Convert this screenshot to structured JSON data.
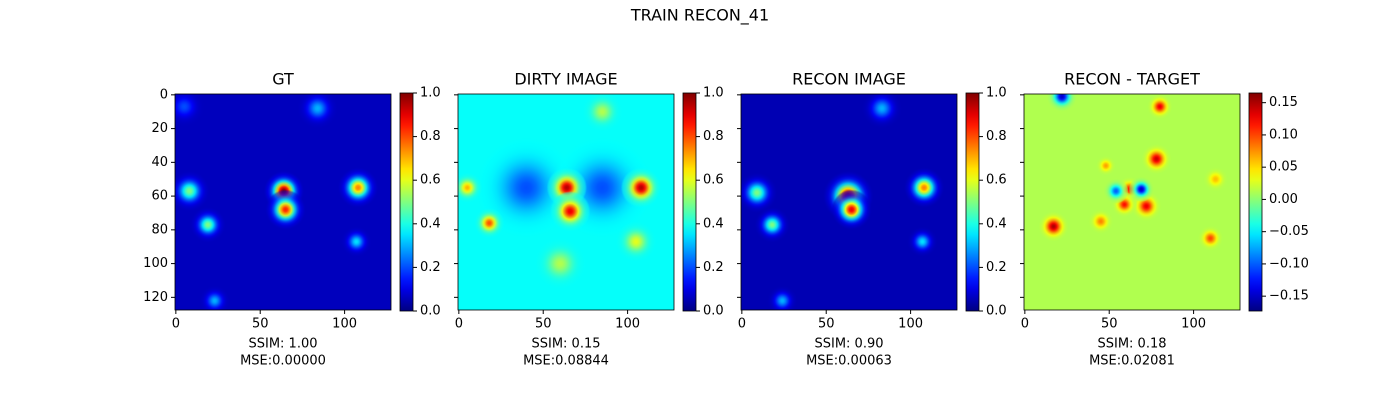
{
  "title": "TRAIN RECON_41",
  "chart_data": [
    {
      "type": "heatmap",
      "title": "GT",
      "xlabel": [
        "SSIM: 1.00",
        "MSE:0.00000"
      ],
      "colormap": "jet",
      "xlim": [
        -0.5,
        127.5
      ],
      "ylim": [
        127.5,
        -0.5
      ],
      "xticks": [
        0,
        50,
        100
      ],
      "yticks": [
        0,
        20,
        40,
        60,
        80,
        100,
        120
      ],
      "ytick_labels": true,
      "clim": [
        0,
        1
      ],
      "cticks": [
        {
          "value": 0,
          "label": "0.0"
        },
        {
          "value": 0.2,
          "label": "0.2"
        },
        {
          "value": 0.4,
          "label": "0.4"
        },
        {
          "value": 0.6,
          "label": "0.6"
        },
        {
          "value": 0.8,
          "label": "0.8"
        },
        {
          "value": 1,
          "label": "1.0"
        }
      ],
      "background": 0.06,
      "peaks": [
        {
          "x": 64,
          "y": 57,
          "value": 1.0,
          "sigma": 4
        },
        {
          "x": 65,
          "y": 68,
          "value": 0.85,
          "sigma": 4
        },
        {
          "x": 108,
          "y": 55,
          "value": 0.75,
          "sigma": 4
        },
        {
          "x": 8,
          "y": 57,
          "value": 0.5,
          "sigma": 4
        },
        {
          "x": 19,
          "y": 77,
          "value": 0.5,
          "sigma": 3.5
        },
        {
          "x": 84,
          "y": 8,
          "value": 0.3,
          "sigma": 4
        },
        {
          "x": 107,
          "y": 87,
          "value": 0.35,
          "sigma": 3
        },
        {
          "x": 23,
          "y": 122,
          "value": 0.3,
          "sigma": 3
        },
        {
          "x": 5,
          "y": 7,
          "value": 0.2,
          "sigma": 4
        }
      ]
    },
    {
      "type": "heatmap",
      "title": "DIRTY IMAGE",
      "xlabel": [
        "SSIM: 0.15",
        "MSE:0.08844"
      ],
      "colormap": "jet",
      "xlim": [
        -0.5,
        127.5
      ],
      "ylim": [
        127.5,
        -0.5
      ],
      "xticks": [
        0,
        50,
        100
      ],
      "yticks": [
        0,
        20,
        40,
        60,
        80,
        100,
        120
      ],
      "ytick_labels": false,
      "clim": [
        0,
        1
      ],
      "cticks": [
        {
          "value": 0,
          "label": "0.0"
        },
        {
          "value": 0.2,
          "label": "0.2"
        },
        {
          "value": 0.4,
          "label": "0.4"
        },
        {
          "value": 0.6,
          "label": "0.6"
        },
        {
          "value": 0.8,
          "label": "0.8"
        },
        {
          "value": 1,
          "label": "1.0"
        }
      ],
      "background": 0.38,
      "peaks": [
        {
          "x": 40,
          "y": 55,
          "value": 0.2,
          "sigma": 10
        },
        {
          "x": 85,
          "y": 55,
          "value": 0.2,
          "sigma": 10
        },
        {
          "x": 64,
          "y": 55,
          "value": 0.95,
          "sigma": 4
        },
        {
          "x": 66,
          "y": 69,
          "value": 0.9,
          "sigma": 4
        },
        {
          "x": 108,
          "y": 55,
          "value": 0.95,
          "sigma": 4
        },
        {
          "x": 18,
          "y": 76,
          "value": 0.8,
          "sigma": 3
        },
        {
          "x": 5,
          "y": 55,
          "value": 0.7,
          "sigma": 3
        },
        {
          "x": 105,
          "y": 87,
          "value": 0.6,
          "sigma": 4
        },
        {
          "x": 85,
          "y": 10,
          "value": 0.55,
          "sigma": 4
        },
        {
          "x": 60,
          "y": 100,
          "value": 0.55,
          "sigma": 5
        }
      ]
    },
    {
      "type": "heatmap",
      "title": "RECON IMAGE",
      "xlabel": [
        "SSIM: 0.90",
        "MSE:0.00063"
      ],
      "colormap": "jet",
      "xlim": [
        -0.5,
        127.5
      ],
      "ylim": [
        127.5,
        -0.5
      ],
      "xticks": [
        0,
        50,
        100
      ],
      "yticks": [
        0,
        20,
        40,
        60,
        80,
        100,
        120
      ],
      "ytick_labels": false,
      "clim": [
        0,
        1
      ],
      "cticks": [
        {
          "value": 0,
          "label": "0.0"
        },
        {
          "value": 0.2,
          "label": "0.2"
        },
        {
          "value": 0.4,
          "label": "0.4"
        },
        {
          "value": 0.6,
          "label": "0.6"
        },
        {
          "value": 0.8,
          "label": "0.8"
        },
        {
          "value": 1,
          "label": "1.0"
        }
      ],
      "background": 0.05,
      "peaks": [
        {
          "x": 63,
          "y": 60,
          "value": 0.95,
          "sigma": 5
        },
        {
          "x": 65,
          "y": 68,
          "value": 0.9,
          "sigma": 4
        },
        {
          "x": 108,
          "y": 55,
          "value": 0.75,
          "sigma": 4
        },
        {
          "x": 9,
          "y": 58,
          "value": 0.5,
          "sigma": 4
        },
        {
          "x": 18,
          "y": 77,
          "value": 0.5,
          "sigma": 3.5
        },
        {
          "x": 83,
          "y": 8,
          "value": 0.3,
          "sigma": 4
        },
        {
          "x": 107,
          "y": 87,
          "value": 0.35,
          "sigma": 3
        },
        {
          "x": 24,
          "y": 122,
          "value": 0.3,
          "sigma": 3
        }
      ]
    },
    {
      "type": "heatmap",
      "title": "RECON - TARGET",
      "xlabel": [
        "SSIM: 0.18",
        "MSE:0.02081"
      ],
      "colormap": "jet",
      "xlim": [
        -0.5,
        127.5
      ],
      "ylim": [
        127.5,
        -0.5
      ],
      "xticks": [
        0,
        50,
        100
      ],
      "yticks": [
        0,
        20,
        40,
        60,
        80,
        100,
        120
      ],
      "ytick_labels": false,
      "clim": [
        -0.173,
        0.165
      ],
      "cticks": [
        {
          "value": -0.15,
          "label": "−0.15"
        },
        {
          "value": -0.1,
          "label": "−0.10"
        },
        {
          "value": -0.05,
          "label": "−0.05"
        },
        {
          "value": 0,
          "label": "0.00"
        },
        {
          "value": 0.05,
          "label": "0.05"
        },
        {
          "value": 0.1,
          "label": "0.10"
        },
        {
          "value": 0.15,
          "label": "0.15"
        }
      ],
      "background": 0.012,
      "peaks": [
        {
          "x": 17,
          "y": 78,
          "value": 0.15,
          "sigma": 3
        },
        {
          "x": 78,
          "y": 38,
          "value": 0.14,
          "sigma": 3
        },
        {
          "x": 62,
          "y": 56,
          "value": 0.12,
          "sigma": 2.5
        },
        {
          "x": 72,
          "y": 66,
          "value": 0.13,
          "sigma": 3
        },
        {
          "x": 59,
          "y": 65,
          "value": 0.12,
          "sigma": 2.5
        },
        {
          "x": 69,
          "y": 56,
          "value": -0.15,
          "sigma": 2.5
        },
        {
          "x": 54,
          "y": 57,
          "value": -0.1,
          "sigma": 2.5
        },
        {
          "x": 80,
          "y": 7,
          "value": 0.13,
          "sigma": 2.5
        },
        {
          "x": 22,
          "y": 1,
          "value": -0.15,
          "sigma": 3
        },
        {
          "x": 110,
          "y": 85,
          "value": 0.1,
          "sigma": 2.5
        },
        {
          "x": 45,
          "y": 75,
          "value": 0.08,
          "sigma": 2.5
        },
        {
          "x": 48,
          "y": 42,
          "value": 0.07,
          "sigma": 2
        },
        {
          "x": 113,
          "y": 50,
          "value": 0.06,
          "sigma": 2.5
        }
      ]
    }
  ]
}
